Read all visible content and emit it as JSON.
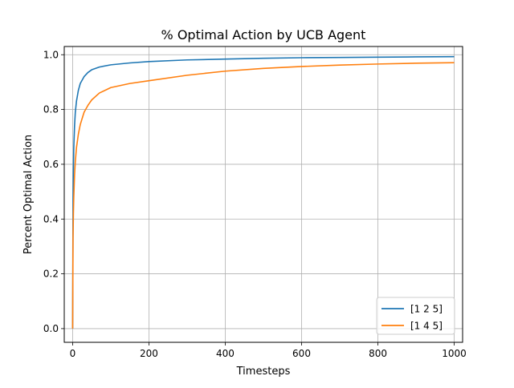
{
  "chart_data": {
    "type": "line",
    "title": "% Optimal Action by UCB Agent",
    "xlabel": "Timesteps",
    "ylabel": "Percent Optimal Action",
    "xlim": [
      -22,
      1022
    ],
    "ylim": [
      -0.05,
      1.03
    ],
    "xticks": [
      0,
      200,
      400,
      600,
      800,
      1000
    ],
    "xtick_labels": [
      "0",
      "200",
      "400",
      "600",
      "800",
      "1000"
    ],
    "yticks": [
      0.0,
      0.2,
      0.4,
      0.6,
      0.8,
      1.0
    ],
    "ytick_labels": [
      "0.0",
      "0.2",
      "0.4",
      "0.6",
      "0.8",
      "1.0"
    ],
    "grid": true,
    "legend_position": "lower-right",
    "x": [
      0,
      1,
      2,
      3,
      5,
      7,
      10,
      15,
      20,
      30,
      40,
      50,
      70,
      100,
      150,
      200,
      300,
      400,
      500,
      600,
      700,
      800,
      900,
      1000
    ],
    "series": [
      {
        "name": "[1 2 5]",
        "color": "#1f77b4",
        "values": [
          0.0,
          0.45,
          0.58,
          0.66,
          0.74,
          0.79,
          0.83,
          0.87,
          0.895,
          0.92,
          0.935,
          0.945,
          0.955,
          0.963,
          0.97,
          0.975,
          0.981,
          0.984,
          0.987,
          0.989,
          0.99,
          0.991,
          0.992,
          0.993
        ]
      },
      {
        "name": "[1 4 5]",
        "color": "#ff7f0e",
        "values": [
          0.0,
          0.33,
          0.42,
          0.48,
          0.56,
          0.61,
          0.66,
          0.71,
          0.745,
          0.79,
          0.815,
          0.835,
          0.86,
          0.88,
          0.895,
          0.905,
          0.925,
          0.94,
          0.95,
          0.957,
          0.962,
          0.966,
          0.969,
          0.971
        ]
      }
    ]
  }
}
